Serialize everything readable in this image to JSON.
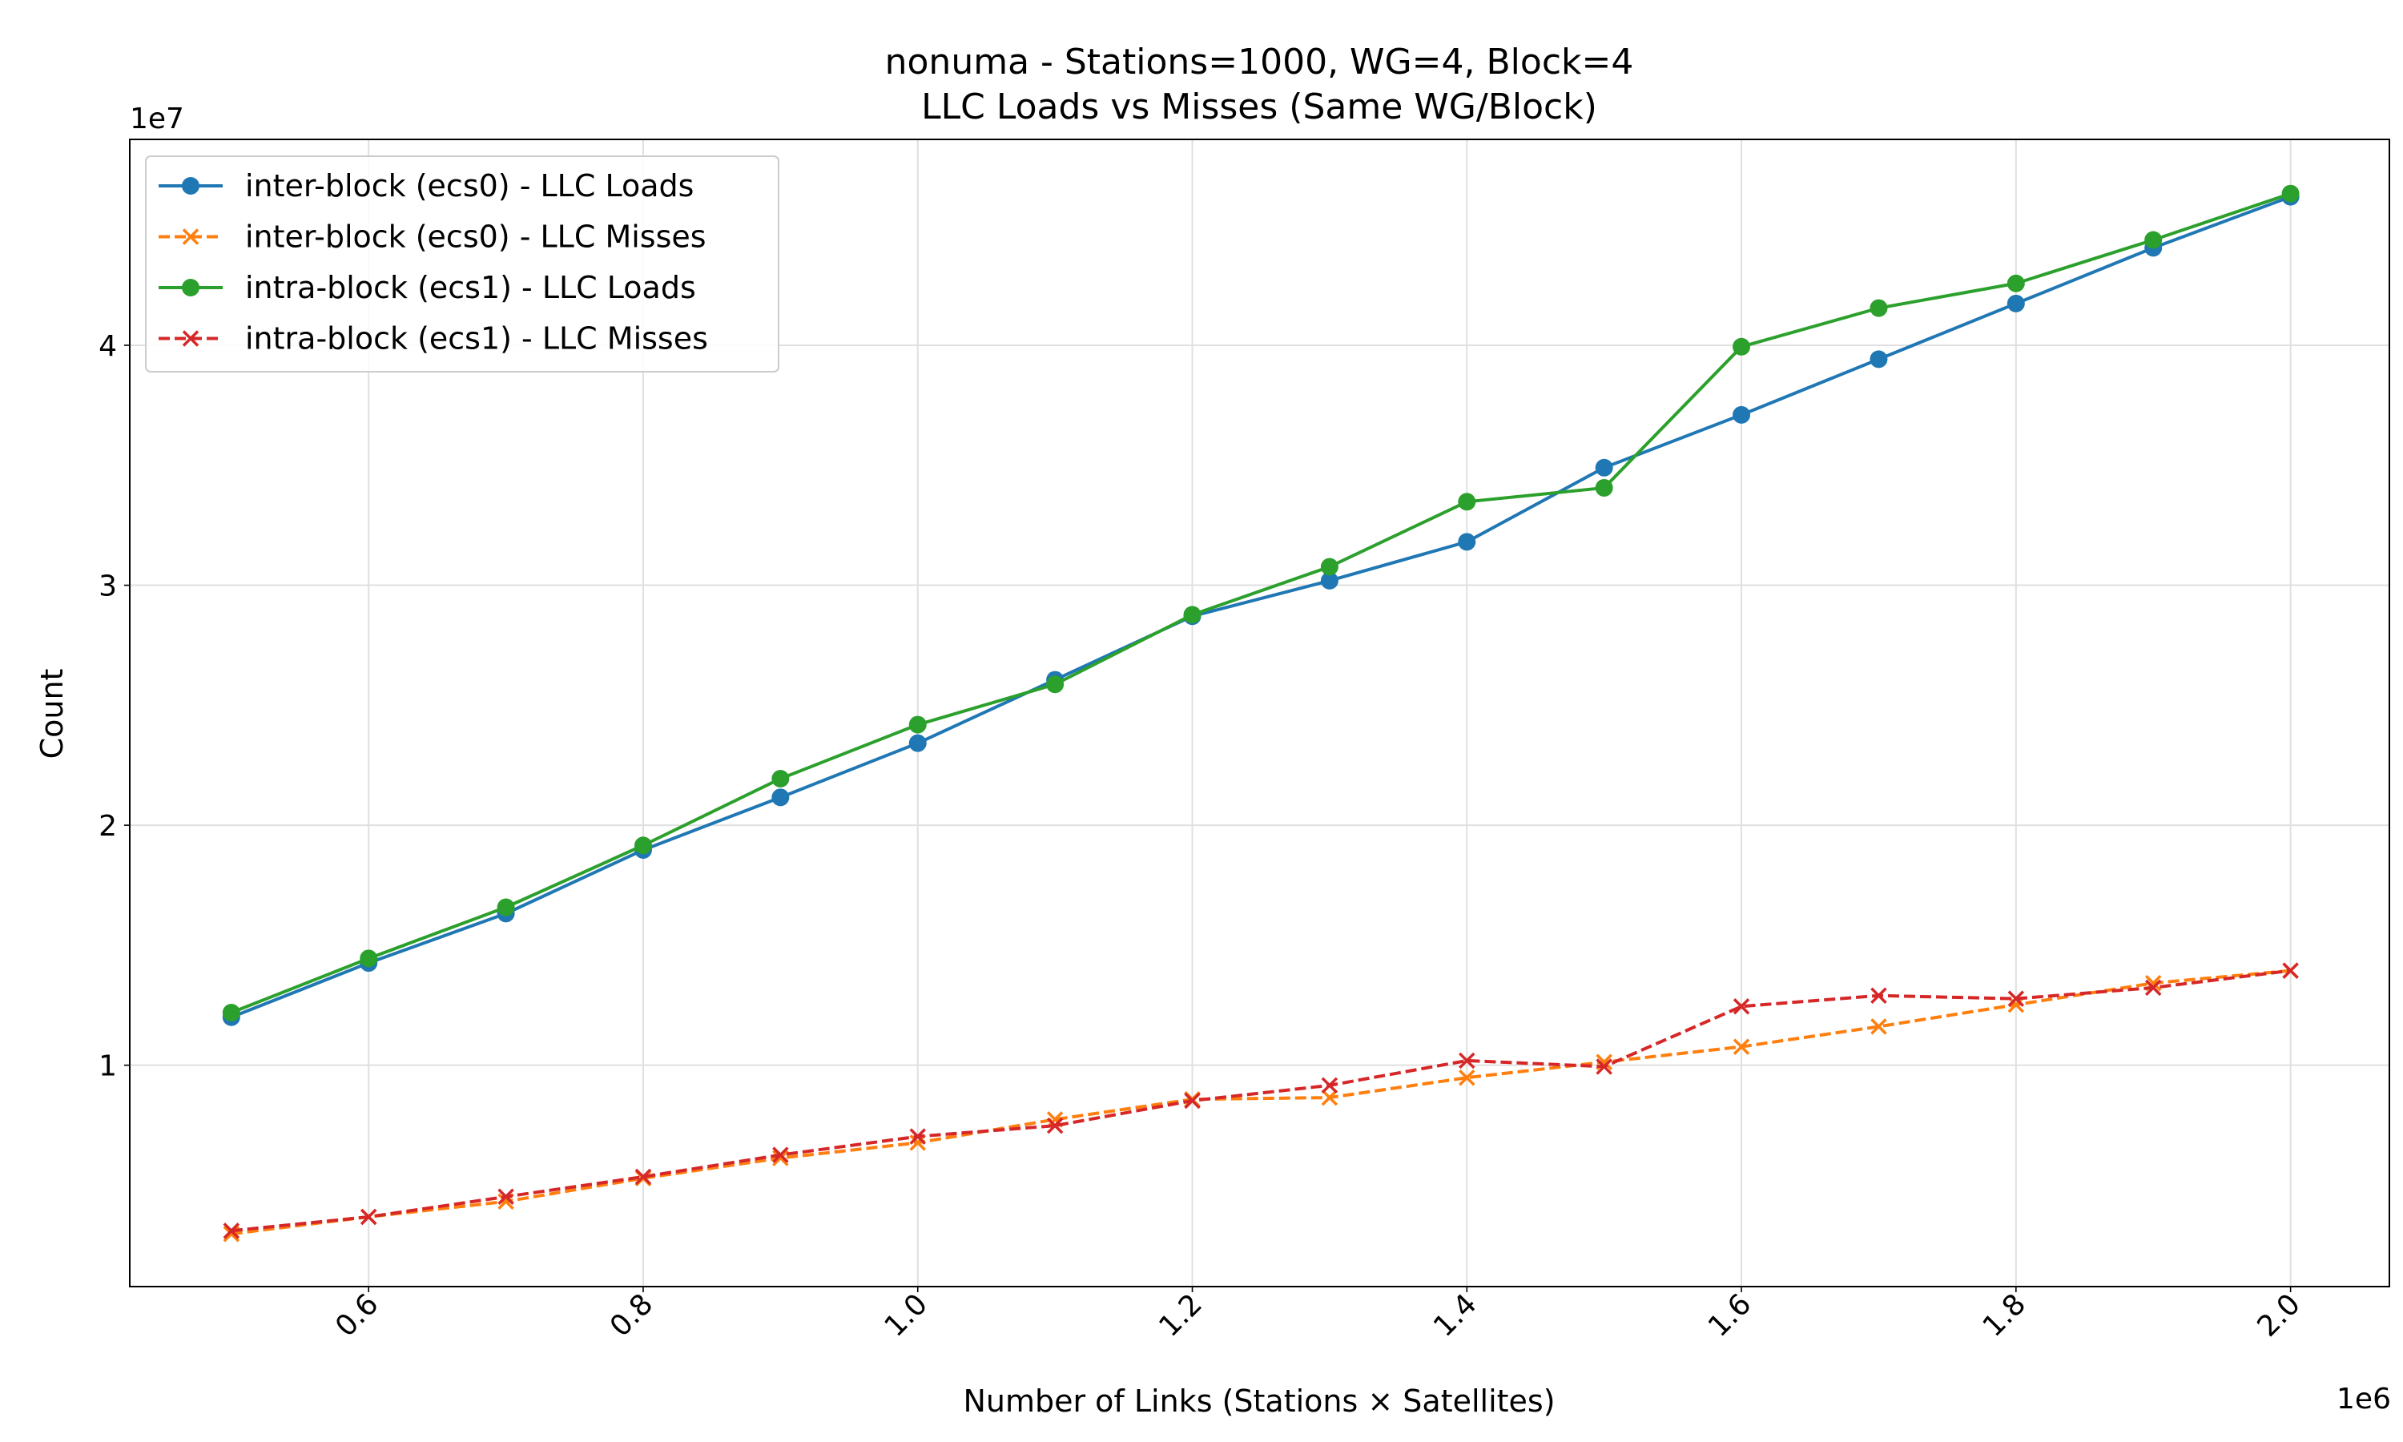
{
  "chart_data": {
    "type": "line",
    "title": "nonuma - Stations=1000, WG=4, Block=4",
    "subtitle": "LLC Loads vs Misses (Same WG/Block)",
    "x_label": "Number of Links (Stations × Satellites)",
    "y_label": "Count",
    "x_offset_label": "1e6",
    "y_offset_label": "1e7",
    "x": [
      500000,
      600000,
      700000,
      800000,
      900000,
      1000000,
      1100000,
      1200000,
      1300000,
      1400000,
      1500000,
      1600000,
      1700000,
      1800000,
      1900000,
      2000000
    ],
    "series": [
      {
        "name": "inter-block (ecs0) - LLC Loads",
        "color": "#1f77b4",
        "marker": "circle",
        "linestyle": "solid",
        "values": [
          12000000,
          14260000,
          16320000,
          18970000,
          21160000,
          23420000,
          26060000,
          28710000,
          30190000,
          31810000,
          34900000,
          37100000,
          39420000,
          41740000,
          44060000,
          46190000
        ]
      },
      {
        "name": "inter-block (ecs0) - LLC Misses",
        "color": "#ff7f0e",
        "marker": "x",
        "linestyle": "dashed",
        "values": [
          2970000,
          3680000,
          4320000,
          5290000,
          6130000,
          6770000,
          7740000,
          8580000,
          8650000,
          9480000,
          10130000,
          10770000,
          11610000,
          12520000,
          13420000,
          13940000
        ]
      },
      {
        "name": "intra-block (ecs1) - LLC Loads",
        "color": "#2ca02c",
        "marker": "circle",
        "linestyle": "solid",
        "values": [
          12190000,
          14450000,
          16580000,
          19160000,
          21940000,
          24190000,
          25870000,
          28770000,
          30770000,
          33480000,
          34060000,
          39940000,
          41550000,
          42580000,
          44390000,
          46320000
        ]
      },
      {
        "name": "intra-block (ecs1) - LLC Misses",
        "color": "#d62728",
        "marker": "x",
        "linestyle": "dashed",
        "values": [
          3100000,
          3680000,
          4520000,
          5350000,
          6260000,
          7030000,
          7480000,
          8520000,
          9160000,
          10190000,
          9940000,
          12450000,
          12900000,
          12770000,
          13230000,
          13940000
        ]
      }
    ],
    "xlim": [
      426000,
      2072000
    ],
    "ylim": [
      774000,
      48580000
    ],
    "xticks": [
      {
        "value": 600000,
        "label": "0.6"
      },
      {
        "value": 800000,
        "label": "0.8"
      },
      {
        "value": 1000000,
        "label": "1.0"
      },
      {
        "value": 1200000,
        "label": "1.2"
      },
      {
        "value": 1400000,
        "label": "1.4"
      },
      {
        "value": 1600000,
        "label": "1.6"
      },
      {
        "value": 1800000,
        "label": "1.8"
      },
      {
        "value": 2000000,
        "label": "2.0"
      }
    ],
    "yticks": [
      {
        "value": 10000000,
        "label": "1"
      },
      {
        "value": 20000000,
        "label": "2"
      },
      {
        "value": 30000000,
        "label": "3"
      },
      {
        "value": 40000000,
        "label": "4"
      }
    ],
    "grid": true,
    "legend_position": "upper left"
  }
}
